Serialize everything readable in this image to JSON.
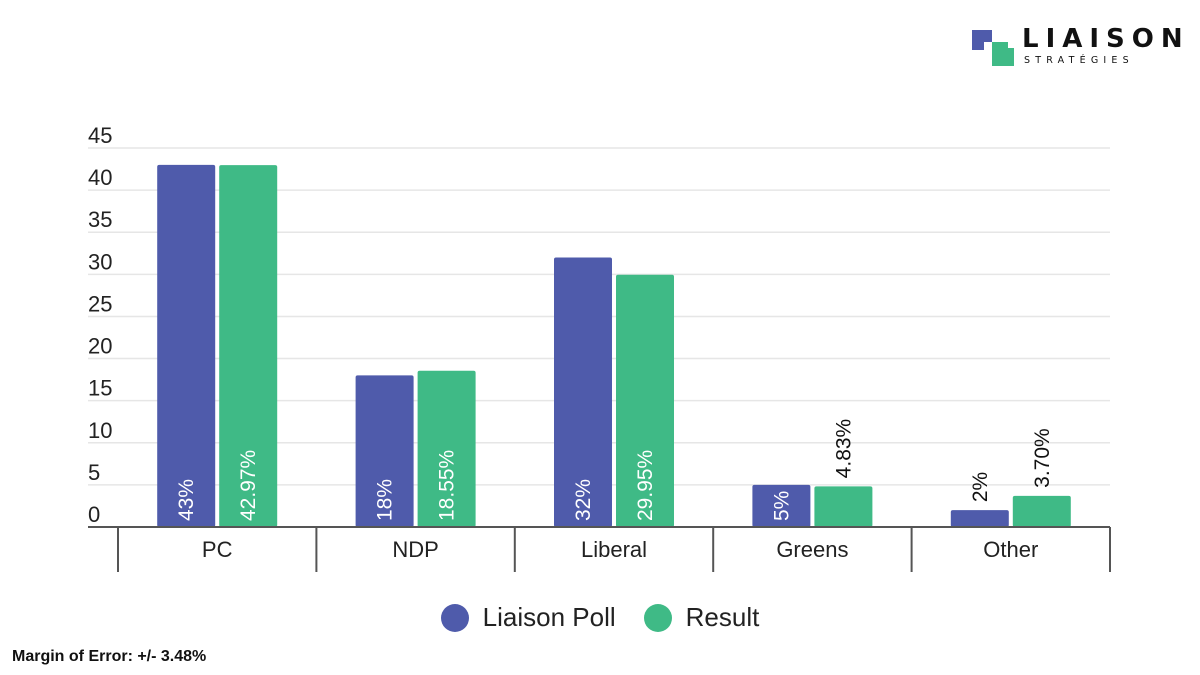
{
  "brand": {
    "name": "LIAISON",
    "tagline": "STRATÉGIES",
    "colors": {
      "primary": "#4f5bab",
      "secondary": "#3fba86"
    }
  },
  "chart_data": {
    "type": "bar",
    "categories": [
      "PC",
      "NDP",
      "Liberal",
      "Greens",
      "Other"
    ],
    "series": [
      {
        "name": "Liaison Poll",
        "color": "#4f5bab",
        "values": [
          43,
          18,
          32,
          5,
          2
        ],
        "labels": [
          "43%",
          "18%",
          "32%",
          "5%",
          "2%"
        ]
      },
      {
        "name": "Result",
        "color": "#3fba86",
        "values": [
          42.97,
          18.55,
          29.95,
          4.83,
          3.7
        ],
        "labels": [
          "42.97%",
          "18.55%",
          "29.95%",
          "4.83%",
          "3.70%"
        ]
      }
    ],
    "ylim": [
      0,
      45
    ],
    "yticks": [
      0,
      5,
      10,
      15,
      20,
      25,
      30,
      35,
      40,
      45
    ],
    "grid": true,
    "legend_position": "bottom-center",
    "data_label_orientation": "vertical"
  },
  "footer": {
    "margin_of_error": "Margin of Error: +/- 3.48%"
  }
}
